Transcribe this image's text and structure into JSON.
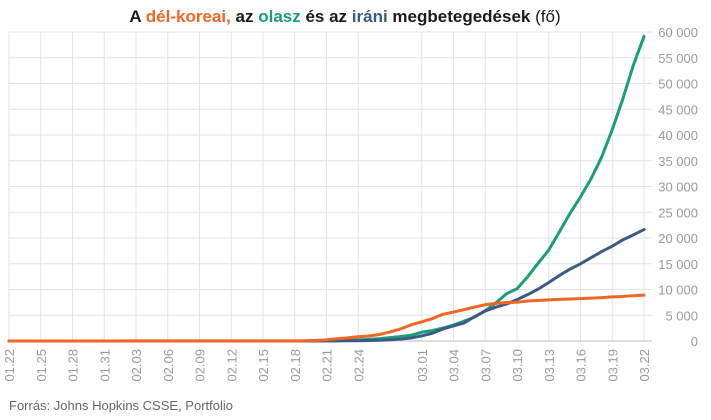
{
  "title": {
    "part1": "A ",
    "korea": "dél-koreai,",
    "part2": " az ",
    "italy": "olasz",
    "part3": " és az ",
    "iran": "iráni",
    "part4": " megbetegedések ",
    "unit": "(fő)"
  },
  "source": "Forrás: Johns Hopkins CSSE, Portfolio",
  "colors": {
    "korea": "#f26522",
    "italy": "#1a9e77",
    "iran": "#3b5a86",
    "title_text": "#1a1a1a",
    "axis_text": "#9a9a9a",
    "grid": "#e3e3e3"
  },
  "chart_data": {
    "type": "line",
    "title": "A dél-koreai, az olasz és az iráni megbetegedések (fő)",
    "xlabel": "",
    "ylabel": "",
    "ylim": [
      0,
      60000
    ],
    "grid": true,
    "y_axis_position": "right",
    "yticks": [
      "0",
      "5 000",
      "10 000",
      "15 000",
      "20 000",
      "25 000",
      "30 000",
      "35 000",
      "40 000",
      "45 000",
      "50 000",
      "55 000",
      "60 000"
    ],
    "ytick_values": [
      0,
      5000,
      10000,
      15000,
      20000,
      25000,
      30000,
      35000,
      40000,
      45000,
      50000,
      55000,
      60000
    ],
    "xticks": [
      "01.22",
      "01.25",
      "01.28",
      "01.31",
      "02.03",
      "02.06",
      "02.09",
      "02.12",
      "02.15",
      "02.18",
      "02.21",
      "02.24",
      "03.01",
      "03.04",
      "03.07",
      "03.10",
      "03.13",
      "03.16",
      "03.19",
      "03.22"
    ],
    "xtick_index": [
      0,
      3,
      6,
      9,
      12,
      15,
      18,
      21,
      24,
      27,
      30,
      33,
      39,
      42,
      45,
      48,
      51,
      54,
      57,
      60
    ],
    "x": [
      "01.22",
      "01.23",
      "01.24",
      "01.25",
      "01.26",
      "01.27",
      "01.28",
      "01.29",
      "01.30",
      "01.31",
      "02.01",
      "02.02",
      "02.03",
      "02.04",
      "02.05",
      "02.06",
      "02.07",
      "02.08",
      "02.09",
      "02.10",
      "02.11",
      "02.12",
      "02.13",
      "02.14",
      "02.15",
      "02.16",
      "02.17",
      "02.18",
      "02.19",
      "02.20",
      "02.21",
      "02.22",
      "02.23",
      "02.24",
      "02.25",
      "02.26",
      "02.27",
      "02.28",
      "02.29",
      "03.01",
      "03.02",
      "03.03",
      "03.04",
      "03.05",
      "03.06",
      "03.07",
      "03.08",
      "03.09",
      "03.10",
      "03.11",
      "03.12",
      "03.13",
      "03.14",
      "03.15",
      "03.16",
      "03.17",
      "03.18",
      "03.19",
      "03.20",
      "03.21",
      "03.22"
    ],
    "series": [
      {
        "name": "dél-koreai",
        "color": "#f26522",
        "values": [
          1,
          1,
          2,
          2,
          3,
          4,
          4,
          4,
          4,
          11,
          12,
          15,
          15,
          16,
          19,
          23,
          24,
          24,
          25,
          27,
          28,
          28,
          28,
          28,
          28,
          29,
          30,
          31,
          58,
          111,
          209,
          436,
          602,
          833,
          977,
          1261,
          1766,
          2337,
          3150,
          3736,
          4335,
          5186,
          5621,
          6088,
          6593,
          7041,
          7314,
          7478,
          7513,
          7755,
          7869,
          7979,
          8086,
          8162,
          8236,
          8320,
          8413,
          8565,
          8652,
          8799,
          8897
        ]
      },
      {
        "name": "olasz",
        "color": "#1a9e77",
        "values": [
          0,
          0,
          0,
          0,
          0,
          0,
          0,
          0,
          0,
          2,
          2,
          2,
          2,
          2,
          2,
          2,
          3,
          3,
          3,
          3,
          3,
          3,
          3,
          3,
          3,
          3,
          3,
          3,
          3,
          3,
          20,
          62,
          155,
          229,
          322,
          453,
          655,
          888,
          1128,
          1694,
          2036,
          2502,
          3089,
          3858,
          4636,
          5883,
          7375,
          9172,
          10149,
          12462,
          15113,
          17660,
          21157,
          24747,
          27980,
          31506,
          35713,
          41035,
          47021,
          53578,
          59138
        ]
      },
      {
        "name": "iráni",
        "color": "#3b5a86",
        "values": [
          0,
          0,
          0,
          0,
          0,
          0,
          0,
          0,
          0,
          0,
          0,
          0,
          0,
          0,
          0,
          0,
          0,
          0,
          0,
          0,
          0,
          0,
          0,
          0,
          0,
          0,
          0,
          0,
          0,
          5,
          18,
          28,
          43,
          61,
          95,
          139,
          245,
          388,
          593,
          978,
          1501,
          2336,
          2922,
          3513,
          4747,
          5823,
          6566,
          7161,
          8042,
          9000,
          10075,
          11364,
          12729,
          13938,
          14991,
          16169,
          17361,
          18407,
          19644,
          20610,
          21638
        ]
      }
    ]
  }
}
